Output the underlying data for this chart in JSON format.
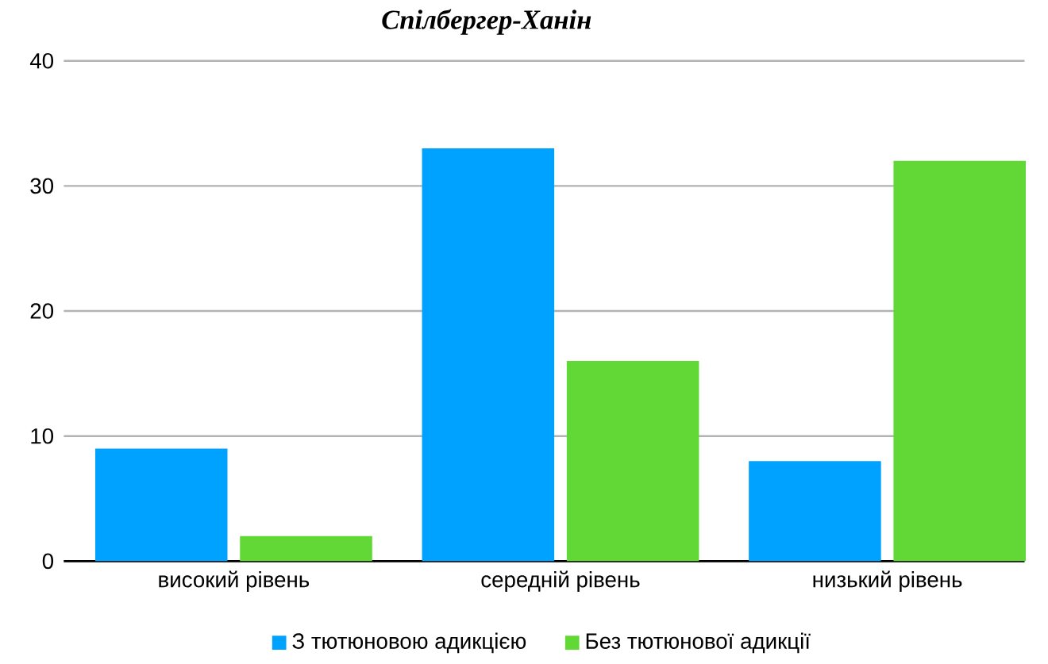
{
  "chart_data": {
    "type": "bar",
    "title": "Спілбергер-Ханін",
    "categories": [
      "високий рівень",
      "середній рівень",
      "низький рівень"
    ],
    "series": [
      {
        "name": "З тютюновою адикцією",
        "color": "#00a2ff",
        "values": [
          9,
          33,
          8
        ]
      },
      {
        "name": "Без тютюнової адикції",
        "color": "#61d836",
        "values": [
          2,
          16,
          32
        ]
      }
    ],
    "ylim": [
      0,
      40
    ],
    "yticks": [
      0,
      10,
      20,
      30,
      40
    ],
    "grid": "y",
    "legend": "bottom"
  }
}
